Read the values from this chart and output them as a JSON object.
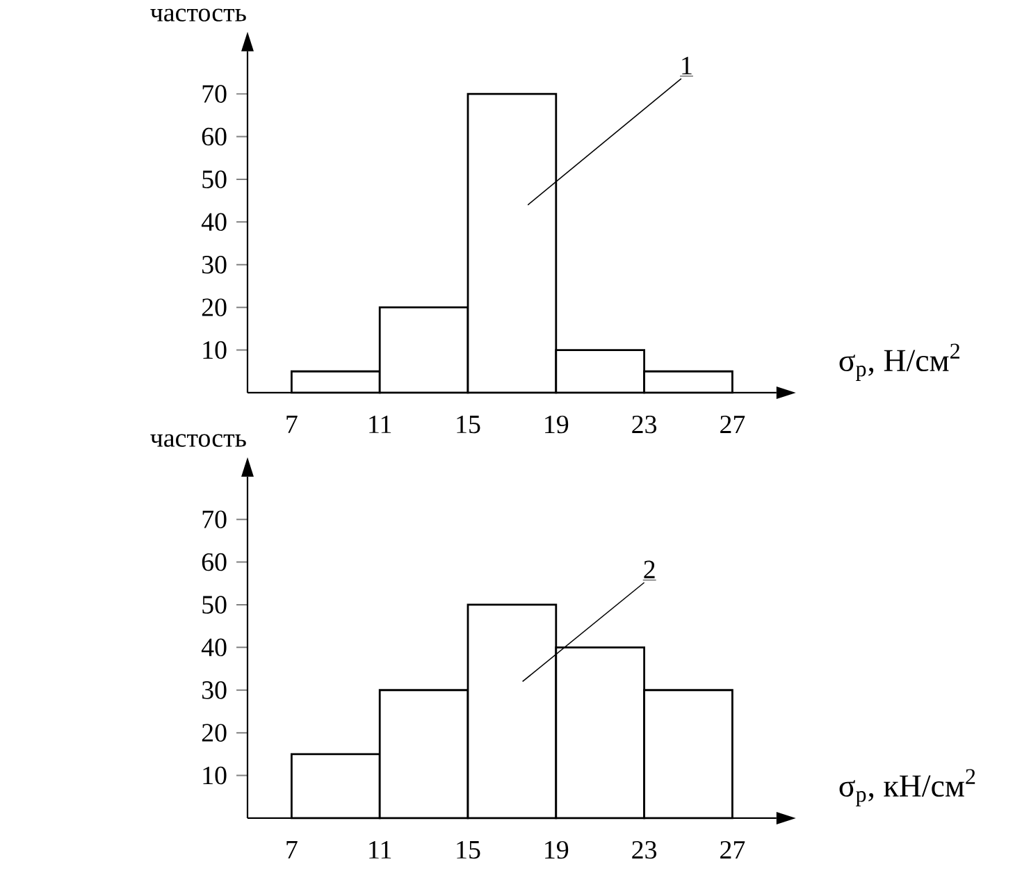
{
  "chart_data": [
    {
      "type": "histogram",
      "ylabel": "частость",
      "xlabel": "σ$_{р}$, Н/см$^{2}$",
      "bins": [
        7,
        11,
        15,
        19,
        23,
        27
      ],
      "values": [
        5,
        20,
        70,
        10,
        5
      ],
      "color": "#ffffff",
      "xlim": [
        5,
        29
      ],
      "ylim": [
        0,
        80
      ],
      "xticks": [
        7,
        11,
        15,
        19,
        23,
        27
      ],
      "yticks": [
        10,
        20,
        30,
        40,
        50,
        60,
        70
      ],
      "annotations": [
        "1"
      ]
    },
    {
      "type": "histogram",
      "ylabel": "частость",
      "xlabel": "σ$_{р}$, кН/см$^{2}$",
      "bins": [
        7,
        11,
        15,
        19,
        23,
        27
      ],
      "values": [
        15,
        30,
        50,
        40,
        30
      ],
      "color": "#ffffff",
      "xlim": [
        5,
        29
      ],
      "ylim": [
        0,
        80
      ],
      "xticks": [
        7,
        11,
        15,
        19,
        23,
        27
      ],
      "yticks": [
        10,
        20,
        30,
        40,
        50,
        60,
        70
      ],
      "annotations": [
        "2"
      ]
    }
  ]
}
